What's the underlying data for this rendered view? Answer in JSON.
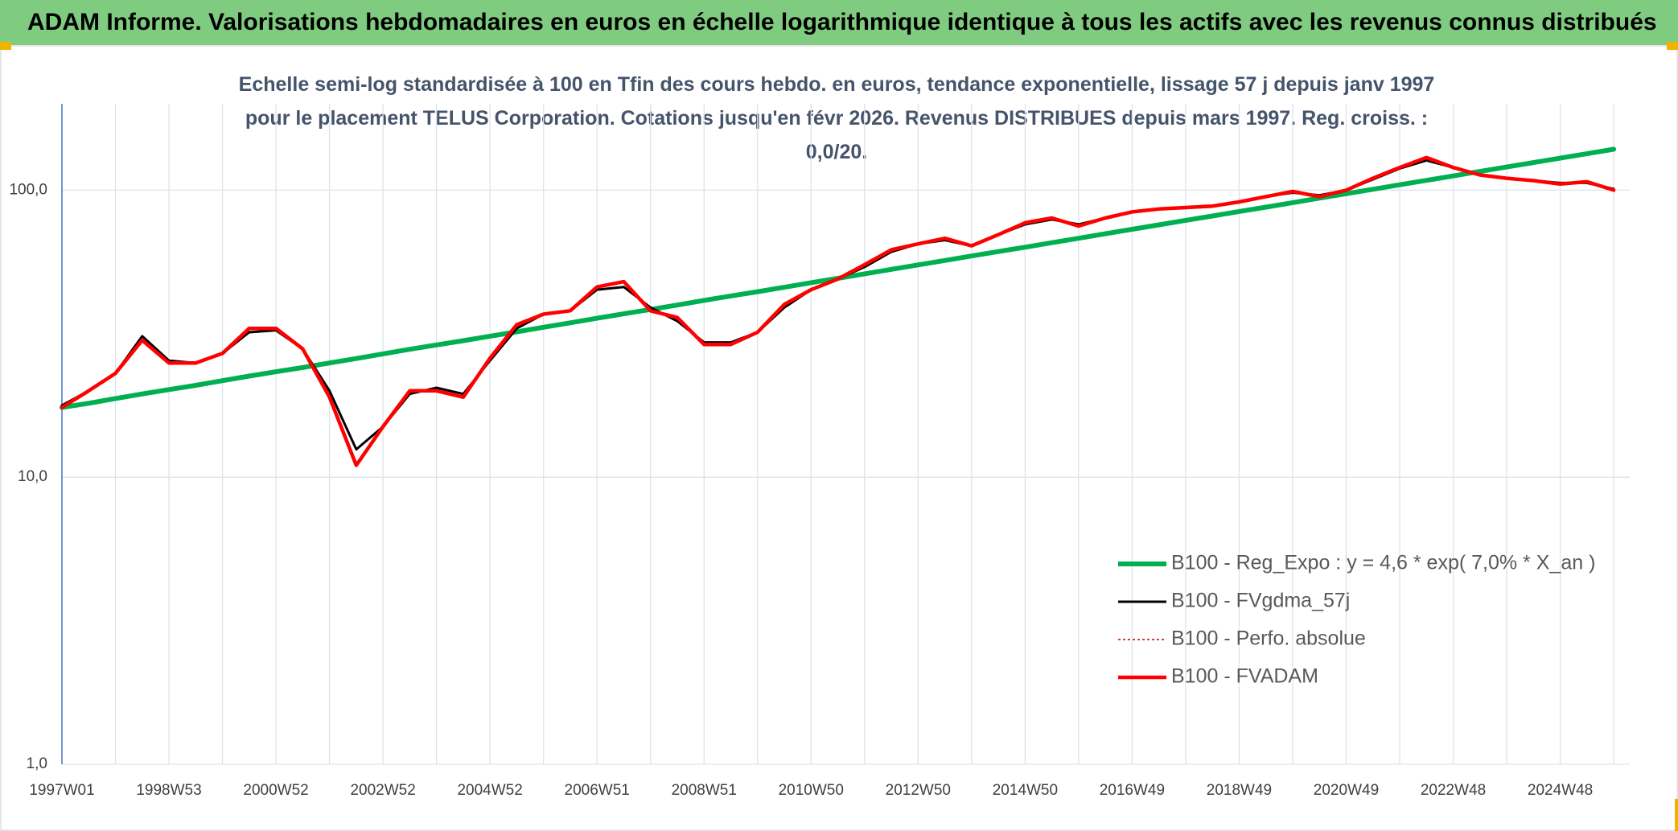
{
  "chart_data": {
    "type": "line",
    "title": "ADAM Informe. Valorisations hebdomadaires en euros en échelle logarithmique identique à tous les actifs avec les revenus connus distribués",
    "subtitle": "Echelle semi-log standardisée à 100 en Tfin des cours hebdo. en euros, tendance exponentielle, lissage 57 j depuis janv 1997 pour le placement TELUS Corporation. Cotations jusqu'en févr 2026. Revenus DISTRIBUES depuis mars 1997. Reg. croiss. : 0,0/20.",
    "log_scale": true,
    "grid": true,
    "legend": "lower right",
    "ylim": [
      1,
      200
    ],
    "yticks": [
      {
        "value": 1,
        "label": "1,0"
      },
      {
        "value": 10,
        "label": "10,0"
      },
      {
        "value": 100,
        "label": "100,0"
      }
    ],
    "categories": [
      "1997W01",
      null,
      null,
      null,
      "1998W53",
      null,
      null,
      null,
      "2000W52",
      null,
      null,
      null,
      "2002W52",
      null,
      null,
      null,
      "2004W52",
      null,
      null,
      null,
      "2006W51",
      null,
      null,
      null,
      "2008W51",
      null,
      null,
      null,
      "2010W50",
      null,
      null,
      null,
      "2012W50",
      null,
      null,
      null,
      "2014W50",
      null,
      null,
      null,
      "2016W49",
      null,
      null,
      null,
      "2018W49",
      null,
      null,
      null,
      "2020W49",
      null,
      null,
      null,
      "2022W48",
      null,
      null,
      null,
      "2024W48",
      null,
      null
    ],
    "series": [
      {
        "name": "B100 - Reg_Expo : y = 4,6 * exp( 7,0% *  X_an )",
        "color": "#00b050",
        "width": 6,
        "dash": null,
        "values": [
          17.5,
          18.1,
          18.8,
          19.5,
          20.2,
          20.9,
          21.7,
          22.5,
          23.3,
          24.1,
          25.0,
          25.9,
          26.9,
          27.9,
          28.9,
          29.9,
          31.0,
          32.1,
          33.3,
          34.5,
          35.8,
          37.1,
          38.4,
          39.8,
          41.3,
          42.8,
          44.3,
          45.9,
          47.6,
          49.3,
          51.1,
          53.0,
          54.9,
          56.9,
          59.0,
          61.1,
          63.3,
          65.6,
          68.0,
          70.5,
          73.1,
          75.7,
          78.5,
          81.3,
          84.3,
          87.3,
          90.5,
          93.8,
          97.2,
          100.7,
          104.4,
          108.2,
          112.1,
          116.2,
          120.4,
          124.8,
          129.3,
          134.0,
          138.9
        ]
      },
      {
        "name": "B100 - FVgdma_57j",
        "color": "#000000",
        "width": 3,
        "dash": null,
        "values": [
          17.8,
          20,
          23,
          31,
          25.5,
          25,
          27,
          32,
          32.5,
          28,
          20,
          12.5,
          15,
          19.5,
          20.5,
          19.5,
          25.5,
          33,
          37,
          38,
          45,
          46,
          39,
          35,
          29.5,
          29.5,
          32,
          39,
          45,
          49,
          54,
          61,
          65,
          67,
          64,
          70,
          76,
          79,
          76,
          80,
          84,
          86,
          87,
          88,
          91,
          95,
          98,
          96,
          100,
          109,
          119,
          127,
          120,
          113,
          110,
          108,
          106,
          106,
          101
        ]
      },
      {
        "name": "B100 - Perfo. absolue",
        "color": "#c00000",
        "width": 1.5,
        "dash": "3 3",
        "values": [
          17.5,
          20,
          23,
          30,
          25,
          25,
          27,
          33,
          33,
          28,
          19,
          11,
          15,
          20,
          20,
          19,
          26,
          34,
          37,
          38,
          46,
          48,
          38,
          36,
          29,
          29,
          32,
          40,
          45,
          49,
          55,
          62,
          65,
          68,
          64,
          70,
          77,
          80,
          75,
          80,
          84,
          86,
          87,
          88,
          91,
          95,
          99,
          95,
          100,
          110,
          120,
          130,
          120,
          113,
          110,
          108,
          105,
          107,
          100
        ]
      },
      {
        "name": "B100 - FVADAM",
        "color": "#ff0000",
        "width": 4.5,
        "dash": null,
        "values": [
          17.5,
          20,
          23,
          30,
          25,
          25,
          27,
          33,
          33,
          28,
          19,
          11,
          15,
          20,
          20,
          19,
          26,
          34,
          37,
          38,
          46,
          48,
          38,
          36,
          29,
          29,
          32,
          40,
          45,
          49,
          55,
          62,
          65,
          68,
          64,
          70,
          77,
          80,
          75,
          80,
          84,
          86,
          87,
          88,
          91,
          95,
          99,
          95,
          100,
          110,
          120,
          130,
          120,
          113,
          110,
          108,
          105,
          107,
          100
        ]
      }
    ]
  }
}
